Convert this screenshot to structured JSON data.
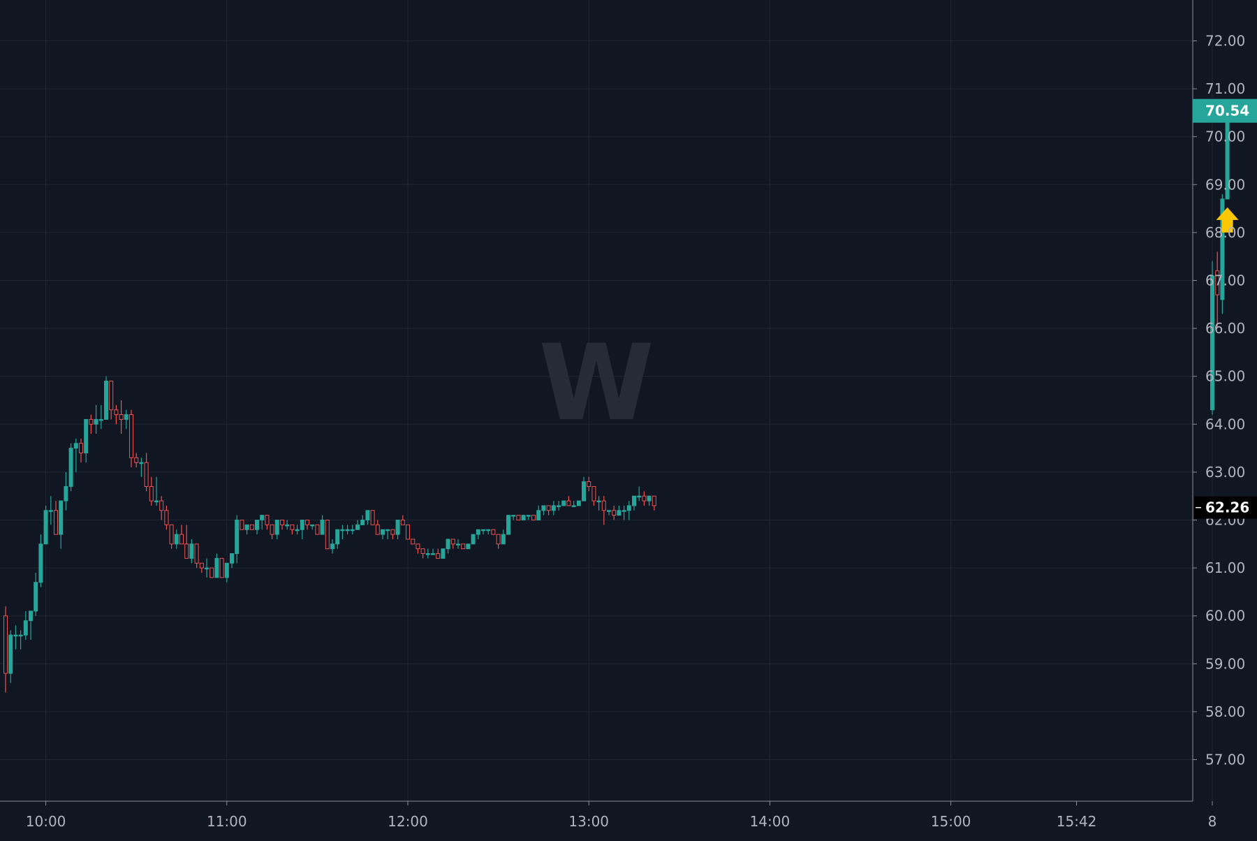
{
  "watermark": "W",
  "colors": {
    "background": "#111623",
    "grid": "#1f2533",
    "axis_line": "#8c909b",
    "axis_text": "#b2b5be",
    "up": "#26a69a",
    "down": "#ef5350",
    "watermark": "#262b38",
    "last_price_bg": "#26a69a",
    "crosshair_label_bg": "#000000",
    "arrow": "#ffc700"
  },
  "price_labels": {
    "last": "70.54",
    "reference": "62.26"
  },
  "chart_data": {
    "type": "candlestick",
    "title": "",
    "xlabel": "",
    "ylabel": "",
    "ylim": [
      56.0,
      73.0
    ],
    "grid": true,
    "y_ticks": [
      "57.00",
      "58.00",
      "59.00",
      "60.00",
      "61.00",
      "62.00",
      "63.00",
      "64.00",
      "65.00",
      "66.00",
      "67.00",
      "68.00",
      "69.00",
      "70.00",
      "71.00",
      "72.00"
    ],
    "x_ticks": [
      {
        "label": "10:00",
        "bar": 8
      },
      {
        "label": "11:00",
        "bar": 44
      },
      {
        "label": "12:00",
        "bar": 80
      },
      {
        "label": "13:00",
        "bar": 116
      },
      {
        "label": "14:00",
        "bar": 152
      },
      {
        "label": "15:00",
        "bar": 188
      },
      {
        "label": "15:42",
        "bar": 213
      },
      {
        "label": "8",
        "bar": 240
      }
    ],
    "session1": [
      [
        60.0,
        60.2,
        58.4,
        58.8
      ],
      [
        58.8,
        59.7,
        58.6,
        59.6
      ],
      [
        59.6,
        59.8,
        59.3,
        59.6
      ],
      [
        59.6,
        59.7,
        59.3,
        59.6
      ],
      [
        59.6,
        60.1,
        59.5,
        59.9
      ],
      [
        59.9,
        60.1,
        59.5,
        60.1
      ],
      [
        60.1,
        60.9,
        60.0,
        60.7
      ],
      [
        60.7,
        61.7,
        60.6,
        61.5
      ],
      [
        61.5,
        62.3,
        61.5,
        62.2
      ],
      [
        62.2,
        62.5,
        61.9,
        62.2
      ],
      [
        62.2,
        62.4,
        61.7,
        61.7
      ],
      [
        61.7,
        62.4,
        61.4,
        62.4
      ],
      [
        62.4,
        63.0,
        62.2,
        62.7
      ],
      [
        62.7,
        63.6,
        62.6,
        63.5
      ],
      [
        63.5,
        63.7,
        63.0,
        63.6
      ],
      [
        63.6,
        63.7,
        63.2,
        63.4
      ],
      [
        63.4,
        64.1,
        63.2,
        64.1
      ],
      [
        64.1,
        64.2,
        63.8,
        64.0
      ],
      [
        64.0,
        64.4,
        63.8,
        64.1
      ],
      [
        64.1,
        64.4,
        63.9,
        64.1
      ],
      [
        64.1,
        65.0,
        64.1,
        64.9
      ],
      [
        64.9,
        64.9,
        64.1,
        64.3
      ],
      [
        64.3,
        64.4,
        64.0,
        64.2
      ],
      [
        64.2,
        64.5,
        63.8,
        64.1
      ],
      [
        64.1,
        64.3,
        63.9,
        64.2
      ],
      [
        64.2,
        64.3,
        63.1,
        63.3
      ],
      [
        63.3,
        63.4,
        63.1,
        63.2
      ],
      [
        63.2,
        63.3,
        62.9,
        63.2
      ],
      [
        63.2,
        63.4,
        62.6,
        62.7
      ],
      [
        62.7,
        62.9,
        62.3,
        62.4
      ],
      [
        62.4,
        62.9,
        62.3,
        62.4
      ],
      [
        62.4,
        62.5,
        62.0,
        62.2
      ],
      [
        62.2,
        62.3,
        61.8,
        61.9
      ],
      [
        61.9,
        61.9,
        61.4,
        61.5
      ],
      [
        61.5,
        61.8,
        61.4,
        61.7
      ],
      [
        61.7,
        61.9,
        61.5,
        61.5
      ],
      [
        61.5,
        61.9,
        61.2,
        61.2
      ],
      [
        61.2,
        61.6,
        61.1,
        61.5
      ],
      [
        61.5,
        61.5,
        61.0,
        61.1
      ],
      [
        61.1,
        61.1,
        60.9,
        61.0
      ],
      [
        61.0,
        61.2,
        60.8,
        61.0
      ],
      [
        61.0,
        61.0,
        60.8,
        60.8
      ],
      [
        60.8,
        61.3,
        60.8,
        61.2
      ],
      [
        61.2,
        61.2,
        60.8,
        60.8
      ],
      [
        60.8,
        61.1,
        60.7,
        61.1
      ],
      [
        61.1,
        61.3,
        61.0,
        61.3
      ],
      [
        61.3,
        62.1,
        61.1,
        62.0
      ],
      [
        62.0,
        62.0,
        61.8,
        61.8
      ],
      [
        61.8,
        61.9,
        61.7,
        61.9
      ],
      [
        61.9,
        61.9,
        61.8,
        61.8
      ],
      [
        61.8,
        62.0,
        61.7,
        62.0
      ],
      [
        62.0,
        62.1,
        61.8,
        62.1
      ],
      [
        62.1,
        62.1,
        61.8,
        61.9
      ],
      [
        61.9,
        61.9,
        61.6,
        61.7
      ],
      [
        61.7,
        62.0,
        61.6,
        62.0
      ],
      [
        62.0,
        62.0,
        61.8,
        61.9
      ],
      [
        61.9,
        62.0,
        61.8,
        61.9
      ],
      [
        61.9,
        61.9,
        61.7,
        61.8
      ],
      [
        61.8,
        61.9,
        61.7,
        61.8
      ],
      [
        61.8,
        62.0,
        61.6,
        62.0
      ],
      [
        62.0,
        62.0,
        61.8,
        61.9
      ],
      [
        61.9,
        61.9,
        61.8,
        61.9
      ],
      [
        61.9,
        61.9,
        61.7,
        61.7
      ],
      [
        61.7,
        62.1,
        61.7,
        62.0
      ],
      [
        62.0,
        62.0,
        61.4,
        61.4
      ],
      [
        61.4,
        61.6,
        61.3,
        61.5
      ],
      [
        61.5,
        61.8,
        61.4,
        61.8
      ],
      [
        61.8,
        61.9,
        61.6,
        61.8
      ],
      [
        61.8,
        61.9,
        61.7,
        61.8
      ],
      [
        61.8,
        61.9,
        61.7,
        61.8
      ],
      [
        61.8,
        62.0,
        61.8,
        61.9
      ],
      [
        61.9,
        62.1,
        61.9,
        62.0
      ],
      [
        62.0,
        62.2,
        61.9,
        62.2
      ],
      [
        62.2,
        62.2,
        61.9,
        61.9
      ],
      [
        61.9,
        62.0,
        61.7,
        61.7
      ],
      [
        61.7,
        61.8,
        61.6,
        61.8
      ],
      [
        61.8,
        61.8,
        61.6,
        61.8
      ],
      [
        61.8,
        61.8,
        61.6,
        61.7
      ],
      [
        61.7,
        62.0,
        61.6,
        62.0
      ],
      [
        62.0,
        62.1,
        61.9,
        61.9
      ],
      [
        61.9,
        61.9,
        61.6,
        61.6
      ],
      [
        61.6,
        61.6,
        61.5,
        61.5
      ],
      [
        61.5,
        61.5,
        61.3,
        61.4
      ],
      [
        61.4,
        61.4,
        61.2,
        61.3
      ],
      [
        61.3,
        61.4,
        61.2,
        61.3
      ],
      [
        61.3,
        61.4,
        61.3,
        61.3
      ],
      [
        61.3,
        61.4,
        61.2,
        61.2
      ],
      [
        61.2,
        61.4,
        61.2,
        61.4
      ],
      [
        61.4,
        61.6,
        61.3,
        61.6
      ],
      [
        61.6,
        61.6,
        61.4,
        61.5
      ],
      [
        61.5,
        61.6,
        61.4,
        61.5
      ],
      [
        61.5,
        61.5,
        61.4,
        61.4
      ],
      [
        61.4,
        61.5,
        61.4,
        61.5
      ],
      [
        61.5,
        61.7,
        61.5,
        61.7
      ],
      [
        61.7,
        61.8,
        61.6,
        61.8
      ],
      [
        61.8,
        61.8,
        61.7,
        61.8
      ],
      [
        61.8,
        61.8,
        61.7,
        61.8
      ],
      [
        61.8,
        61.8,
        61.7,
        61.7
      ],
      [
        61.7,
        61.7,
        61.4,
        61.5
      ],
      [
        61.5,
        61.8,
        61.5,
        61.7
      ],
      [
        61.7,
        62.1,
        61.7,
        62.1
      ],
      [
        62.1,
        62.1,
        62.0,
        62.1
      ],
      [
        62.1,
        62.1,
        62.0,
        62.0
      ],
      [
        62.0,
        62.1,
        62.0,
        62.1
      ],
      [
        62.1,
        62.1,
        62.0,
        62.1
      ],
      [
        62.1,
        62.1,
        62.0,
        62.0
      ],
      [
        62.0,
        62.3,
        62.0,
        62.2
      ],
      [
        62.2,
        62.3,
        62.1,
        62.3
      ],
      [
        62.3,
        62.3,
        62.1,
        62.2
      ],
      [
        62.2,
        62.4,
        62.1,
        62.3
      ],
      [
        62.3,
        62.4,
        62.2,
        62.3
      ],
      [
        62.3,
        62.4,
        62.3,
        62.4
      ],
      [
        62.4,
        62.5,
        62.3,
        62.3
      ],
      [
        62.3,
        62.4,
        62.3,
        62.3
      ],
      [
        62.3,
        62.4,
        62.3,
        62.4
      ],
      [
        62.4,
        62.9,
        62.4,
        62.8
      ],
      [
        62.8,
        62.9,
        62.6,
        62.7
      ],
      [
        62.7,
        62.7,
        62.3,
        62.4
      ],
      [
        62.4,
        62.5,
        62.2,
        62.4
      ],
      [
        62.4,
        62.5,
        61.9,
        62.2
      ],
      [
        62.2,
        62.2,
        62.1,
        62.2
      ],
      [
        62.2,
        62.3,
        62.0,
        62.1
      ],
      [
        62.1,
        62.3,
        62.1,
        62.2
      ],
      [
        62.2,
        62.3,
        62.0,
        62.2
      ],
      [
        62.2,
        62.4,
        62.0,
        62.3
      ],
      [
        62.3,
        62.5,
        62.2,
        62.5
      ],
      [
        62.5,
        62.7,
        62.4,
        62.5
      ],
      [
        62.5,
        62.6,
        62.3,
        62.4
      ],
      [
        62.4,
        62.5,
        62.3,
        62.5
      ],
      [
        62.5,
        62.5,
        62.2,
        62.3
      ]
    ],
    "session2": [
      [
        64.3,
        67.4,
        64.2,
        67.1
      ],
      [
        67.2,
        67.6,
        66.0,
        66.7
      ],
      [
        66.6,
        68.8,
        66.3,
        68.7
      ],
      [
        68.7,
        70.6,
        68.7,
        70.5
      ]
    ],
    "markers": [
      {
        "type": "arrow-up",
        "bar": 243,
        "price": 68.0
      }
    ]
  }
}
